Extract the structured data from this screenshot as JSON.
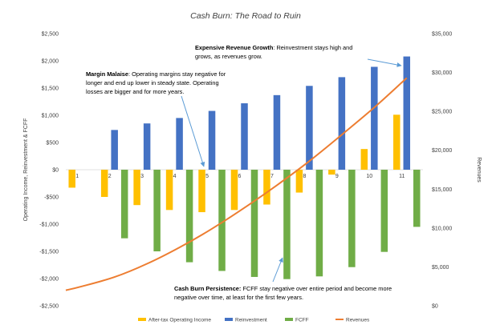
{
  "chart_data": {
    "type": "bar",
    "title": "Cash Burn: The Road to Ruin",
    "ylabel": "Operating Income, Reinvestment & FCFF",
    "y2label": "Revenues",
    "ylim": [
      -2500,
      2500
    ],
    "y2lim": [
      0,
      35000
    ],
    "yticks": [
      "$2,500",
      "$2,000",
      "$1,500",
      "$1,000",
      "$500",
      "$0",
      "-$500",
      "-$1,000",
      "-$1,500",
      "-$2,000",
      "-$2,500"
    ],
    "y2ticks": [
      "$35,000",
      "$30,000",
      "$25,000",
      "$20,000",
      "$15,000",
      "$10,000",
      "$5,000",
      "$0"
    ],
    "categories": [
      "1",
      "2",
      "3",
      "4",
      "5",
      "6",
      "7",
      "8",
      "9",
      "10",
      "11"
    ],
    "series": [
      {
        "name": "After-tax Operating Income",
        "type": "bar",
        "color": "#FFC000",
        "values": [
          -330,
          -500,
          -650,
          -740,
          -780,
          -740,
          -640,
          -420,
          -90,
          380,
          1010
        ]
      },
      {
        "name": "Reinvestment",
        "type": "bar",
        "color": "#4472C4",
        "values": [
          0,
          730,
          850,
          950,
          1080,
          1220,
          1370,
          1540,
          1700,
          1890,
          2080
        ]
      },
      {
        "name": "FCFF",
        "type": "bar",
        "color": "#70AD47",
        "values": [
          0,
          -1260,
          -1500,
          -1700,
          -1860,
          -1970,
          -2010,
          -1960,
          -1790,
          -1510,
          -1050
        ]
      },
      {
        "name": "Revenues",
        "type": "line",
        "axis": "right",
        "color": "#ED7D31",
        "x": [
          0.5,
          1,
          2,
          3,
          4,
          5,
          6,
          7,
          8,
          9,
          10,
          11
        ],
        "values": [
          2000,
          2500,
          3700,
          5400,
          7500,
          9900,
          12600,
          15500,
          18600,
          22000,
          25500,
          29300
        ]
      }
    ],
    "grid": false,
    "legend": "bottom"
  },
  "annotations": {
    "growth": {
      "bold": "Expensive Revenue Growth",
      "line1": ": Reinvestment stays high and",
      "line2": "grows, as revenues grow."
    },
    "malaise": {
      "bold": "Margin Malaise",
      "line1": ": Operating margins stay negative for",
      "line2": "longer and end up lower in steady state. Operating",
      "line3": "losses are bigger and for more years."
    },
    "persistence": {
      "bold": "Cash Burn Persistence:",
      "line1": " FCFF stay negative over entire period and become more",
      "line2": "negative over time, at least for the first few years."
    }
  }
}
